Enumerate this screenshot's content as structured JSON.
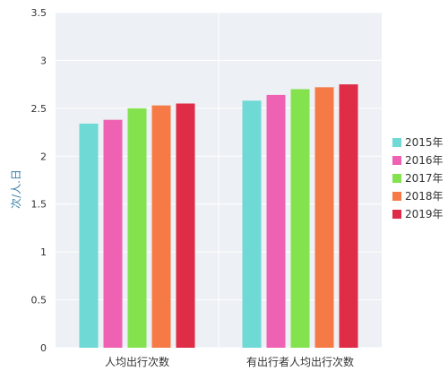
{
  "chart_data": {
    "type": "bar",
    "title": "",
    "xlabel": "",
    "ylabel": "次/人.日",
    "ylim": [
      0,
      3.5
    ],
    "yticks": [
      0,
      0.5,
      1,
      1.5,
      2,
      2.5,
      3,
      3.5
    ],
    "ytick_labels": [
      "0",
      "0.5",
      "1",
      "1.5",
      "2",
      "2.5",
      "3",
      "3.5"
    ],
    "categories": [
      "人均出行次数",
      "有出行者人均出行次数"
    ],
    "series": [
      {
        "name": "2015年",
        "color": "#6fd9d6",
        "values": [
          2.34,
          2.58
        ]
      },
      {
        "name": "2016年",
        "color": "#ef62b3",
        "values": [
          2.38,
          2.64
        ]
      },
      {
        "name": "2017年",
        "color": "#84e24f",
        "values": [
          2.5,
          2.7
        ]
      },
      {
        "name": "2018年",
        "color": "#f57a45",
        "values": [
          2.53,
          2.72
        ]
      },
      {
        "name": "2019年",
        "color": "#df2c47",
        "values": [
          2.55,
          2.75
        ]
      }
    ],
    "grid": true,
    "legend_position": "right",
    "colors": {
      "plot_background": "#edf0f4",
      "grid": "#ffffff",
      "tick_text": "#333333",
      "ylabel_text": "#3a7ea8"
    }
  }
}
